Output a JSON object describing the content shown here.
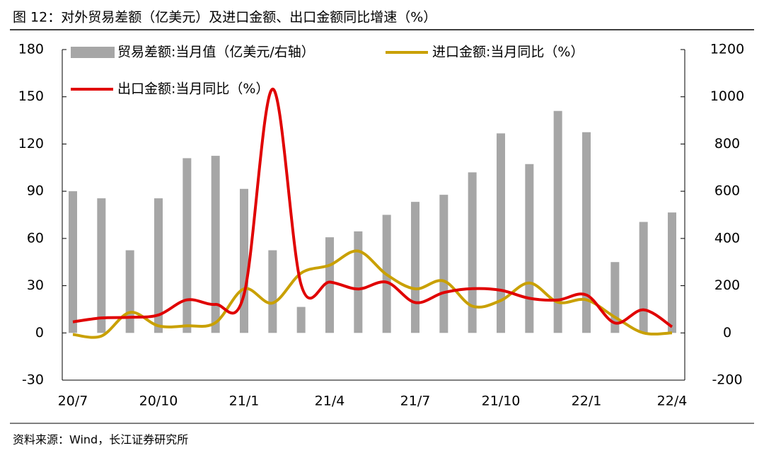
{
  "chart_data": {
    "type": "combo",
    "title": "图 12：对外贸易差额（亿美元）及进口金额、出口金额同比增速（%）",
    "source": "资料来源：Wind，长江证券研究所",
    "categories": [
      "20/7",
      null,
      null,
      "20/10",
      null,
      null,
      "21/1",
      null,
      null,
      "21/4",
      null,
      null,
      "21/7",
      null,
      null,
      "21/10",
      null,
      null,
      "22/1",
      null,
      null,
      "22/4"
    ],
    "series": [
      {
        "name": "贸易差额:当月值（亿美元/右轴）",
        "type": "bar",
        "axis": "y2",
        "color": "#a6a6a6",
        "values": [
          600,
          570,
          350,
          570,
          740,
          750,
          610,
          350,
          110,
          405,
          430,
          500,
          555,
          585,
          680,
          845,
          715,
          940,
          850,
          300,
          470,
          510
        ]
      },
      {
        "name": "进口金额:当月同比（%）",
        "type": "line",
        "color": "#c9a000",
        "values": [
          -1,
          -2,
          13,
          4.5,
          4.5,
          6.5,
          28,
          19,
          38,
          43,
          52,
          37,
          28,
          33,
          17,
          20.6,
          31.7,
          19.5,
          21,
          10,
          0,
          0
        ]
      },
      {
        "name": "出口金额:当月同比（%）",
        "type": "line",
        "color": "#e00000",
        "values": [
          7,
          9.5,
          9.9,
          11.4,
          21,
          18.1,
          24.5,
          154.9,
          30.6,
          32.3,
          27.9,
          32.2,
          19.3,
          25.6,
          28.1,
          27.1,
          22,
          20.9,
          24.1,
          6.3,
          14.7,
          3.9
        ]
      }
    ],
    "ylim": [
      -30,
      180
    ],
    "yticks": [
      -30,
      0,
      30,
      60,
      90,
      120,
      150,
      180
    ],
    "y2lim": [
      -200,
      1200
    ],
    "y2ticks": [
      -200,
      0,
      200,
      400,
      600,
      800,
      1000,
      1200
    ]
  }
}
